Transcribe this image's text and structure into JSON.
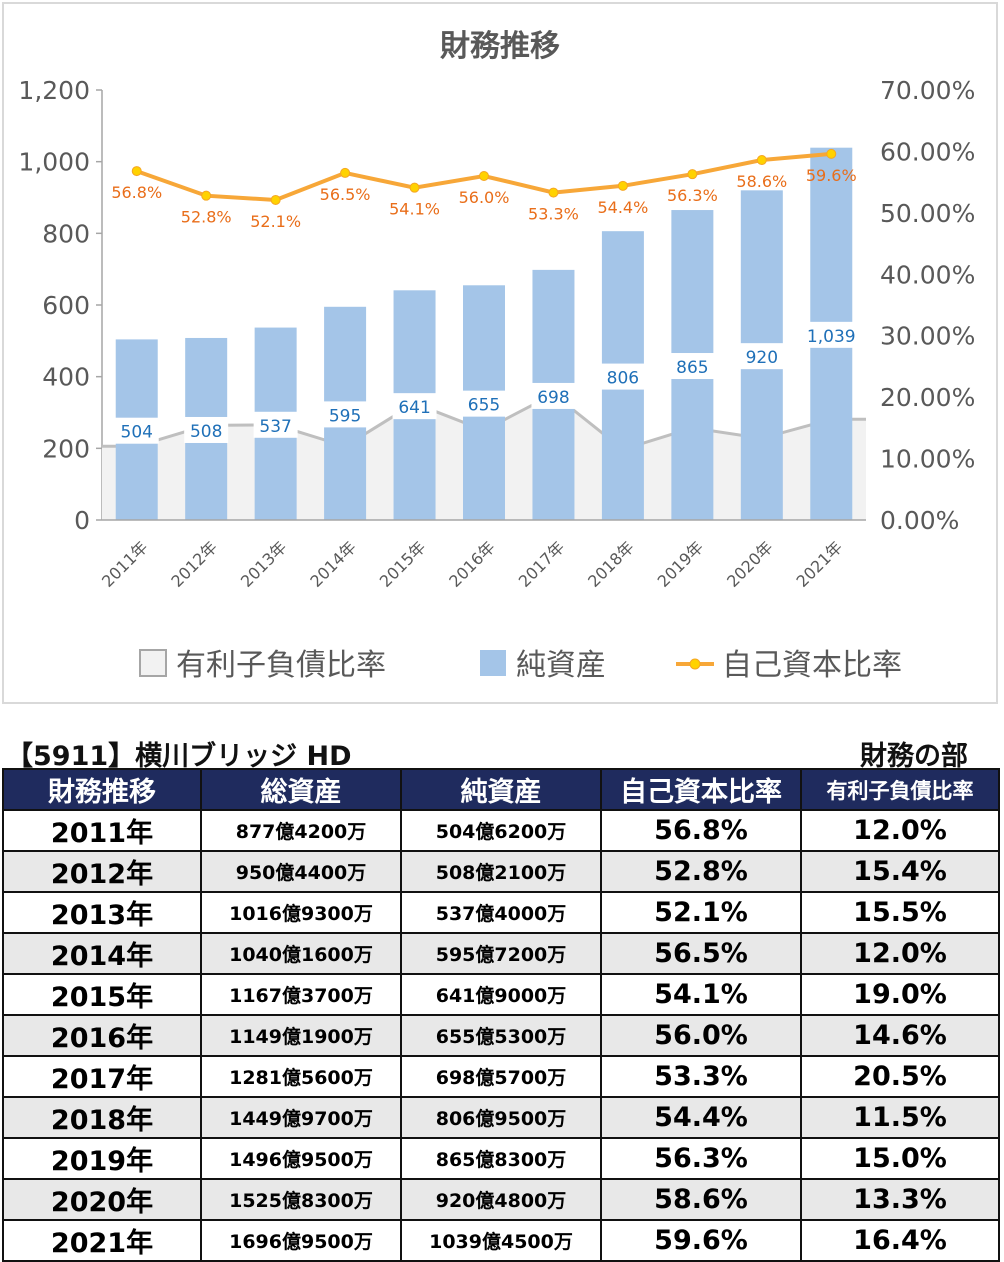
{
  "chart_data": {
    "type": "bar+line+area",
    "title": "財務推移",
    "categories": [
      "2011年",
      "2012年",
      "2013年",
      "2014年",
      "2015年",
      "2016年",
      "2017年",
      "2018年",
      "2019年",
      "2020年",
      "2021年"
    ],
    "bar_series": {
      "name": "純資産",
      "values": [
        504,
        508,
        537,
        595,
        641,
        655,
        698,
        806,
        865,
        920,
        1039
      ],
      "labels": [
        "504",
        "508",
        "537",
        "595",
        "641",
        "655",
        "698",
        "806",
        "865",
        "920",
        "1,039"
      ],
      "color": "#a4c5e8"
    },
    "line_series": {
      "name": "自己資本比率",
      "values": [
        56.8,
        52.8,
        52.1,
        56.5,
        54.1,
        56.0,
        53.3,
        54.4,
        56.3,
        58.6,
        59.6
      ],
      "labels": [
        "56.8%",
        "52.8%",
        "52.1%",
        "56.5%",
        "54.1%",
        "56.0%",
        "53.3%",
        "54.4%",
        "56.3%",
        "58.6%",
        "59.6%"
      ],
      "color": "#f7a738"
    },
    "area_series": {
      "name": "有利子負債比率",
      "values": [
        12.0,
        15.4,
        15.5,
        12.0,
        19.0,
        14.6,
        20.5,
        11.5,
        15.0,
        13.3,
        16.4
      ],
      "color": "#f2f2f2"
    },
    "y_left": {
      "min": 0,
      "max": 1200,
      "ticks": [
        "0",
        "200",
        "400",
        "600",
        "800",
        "1,000",
        "1,200"
      ]
    },
    "y_right": {
      "min": 0,
      "max": 70,
      "ticks": [
        "0.00%",
        "10.00%",
        "20.00%",
        "30.00%",
        "40.00%",
        "50.00%",
        "60.00%",
        "70.00%"
      ]
    },
    "legend": [
      "有利子負債比率",
      "純資産",
      "自己資本比率"
    ],
    "legend_position": "bottom"
  },
  "header": {
    "company": "【5911】横川ブリッジ HD",
    "section": "財務の部"
  },
  "table": {
    "columns": [
      "財務推移",
      "総資産",
      "純資産",
      "自己資本比率",
      "有利子負債比率"
    ],
    "rows": [
      [
        "2011年",
        "877億4200万",
        "504億6200万",
        "56.8%",
        "12.0%"
      ],
      [
        "2012年",
        "950億4400万",
        "508億2100万",
        "52.8%",
        "15.4%"
      ],
      [
        "2013年",
        "1016億9300万",
        "537億4000万",
        "52.1%",
        "15.5%"
      ],
      [
        "2014年",
        "1040億1600万",
        "595億7200万",
        "56.5%",
        "12.0%"
      ],
      [
        "2015年",
        "1167億3700万",
        "641億9000万",
        "54.1%",
        "19.0%"
      ],
      [
        "2016年",
        "1149億1900万",
        "655億5300万",
        "56.0%",
        "14.6%"
      ],
      [
        "2017年",
        "1281億5600万",
        "698億5700万",
        "53.3%",
        "20.5%"
      ],
      [
        "2018年",
        "1449億9700万",
        "806億9500万",
        "54.4%",
        "11.5%"
      ],
      [
        "2019年",
        "1496億9500万",
        "865億8300万",
        "56.3%",
        "15.0%"
      ],
      [
        "2020年",
        "1525億8300万",
        "920億4800万",
        "58.6%",
        "13.3%"
      ],
      [
        "2021年",
        "1696億9500万",
        "1039億4500万",
        "59.6%",
        "16.4%"
      ]
    ]
  }
}
